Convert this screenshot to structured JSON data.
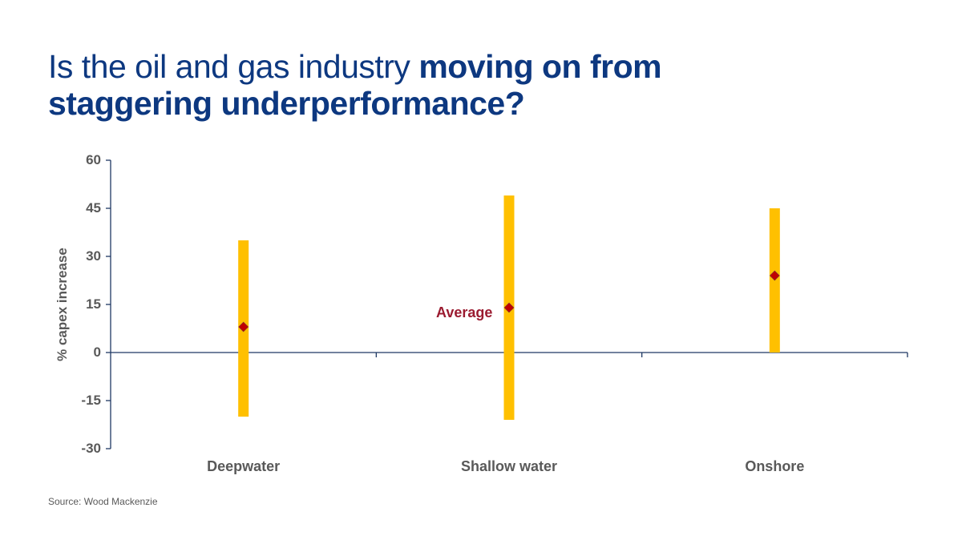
{
  "title": {
    "light": "Is the oil and gas industry ",
    "bold_line1": "moving on from",
    "bold_line2": "staggering underperformance?"
  },
  "source": "Source: Wood Mackenzie",
  "colors": {
    "title": "#0d3880",
    "axis": "#1f3864",
    "bar": "#ffc000",
    "marker": "#c00000",
    "avg_label": "#9b1b30",
    "text": "#595959"
  },
  "chart_data": {
    "type": "range-bar",
    "title": "Is the oil and gas industry moving on from staggering underperformance?",
    "xlabel": "",
    "ylabel": "% capex increase",
    "ylim": [
      -30,
      60
    ],
    "yticks": [
      "60",
      "45",
      "30",
      "15",
      "0",
      "-15",
      "-30"
    ],
    "categories": [
      "Deepwater",
      "Shallow water",
      "Onshore"
    ],
    "series": [
      {
        "name": "Range max",
        "values": [
          35,
          49,
          45
        ]
      },
      {
        "name": "Range min",
        "values": [
          -20,
          -21,
          0
        ]
      },
      {
        "name": "Average",
        "values": [
          8,
          14,
          24
        ]
      }
    ],
    "annotations": [
      {
        "text": "Average",
        "category": "Shallow water"
      }
    ],
    "grid": false,
    "legend": "none"
  }
}
